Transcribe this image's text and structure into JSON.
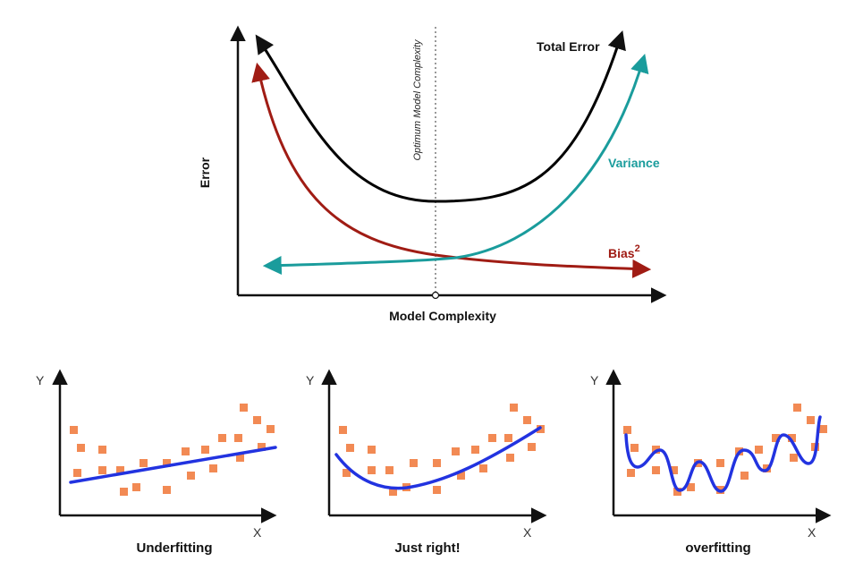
{
  "main_chart": {
    "y_axis_label": "Error",
    "x_axis_label": "Model Complexity",
    "optimum_label": "Optimum Model Complexity",
    "curves": {
      "total_error": {
        "label": "Total Error",
        "color": "#000000"
      },
      "variance": {
        "label": "Variance",
        "color": "#1a9c9c"
      },
      "bias": {
        "label": "Bias",
        "superscript": "2",
        "color": "#a01c14"
      }
    }
  },
  "panels": [
    {
      "title": "Underfitting",
      "x_label": "X",
      "y_label": "Y"
    },
    {
      "title": "Just right!",
      "x_label": "X",
      "y_label": "Y"
    },
    {
      "title": "overfitting",
      "x_label": "X",
      "y_label": "Y"
    }
  ],
  "colors": {
    "points": "#f28a54",
    "fit_line": "#2233e0",
    "axis": "#111111"
  }
}
